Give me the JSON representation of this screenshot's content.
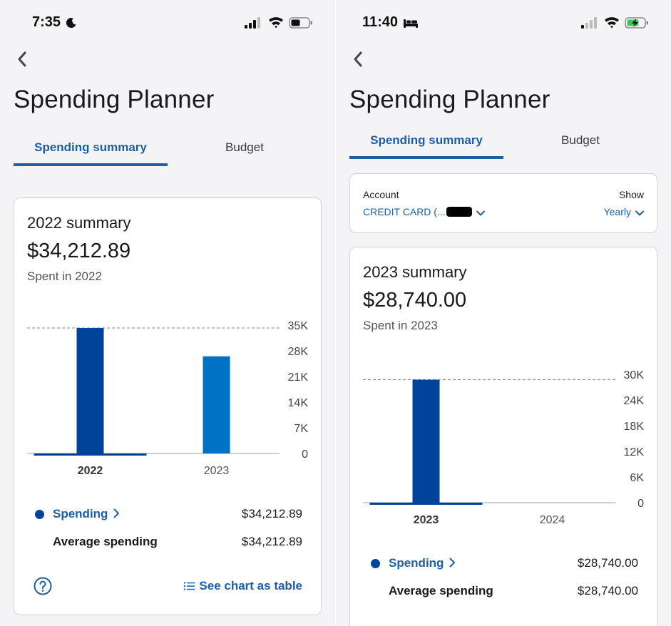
{
  "left": {
    "status": {
      "time": "7:35"
    },
    "title": "Spending Planner",
    "tabs": [
      "Spending summary",
      "Budget"
    ],
    "summary": {
      "title": "2022 summary",
      "amount": "$34,212.89",
      "subtitle": "Spent in 2022"
    },
    "chart_data": {
      "type": "bar",
      "categories": [
        "2022",
        "2023"
      ],
      "values": [
        34212.89,
        26500
      ],
      "selected_category": "2022",
      "ylim": [
        0,
        35000
      ],
      "y_ticks": [
        "35K",
        "28K",
        "21K",
        "14K",
        "7K",
        "0"
      ],
      "reference_line": 34212.89,
      "colors": {
        "selected": "#00439a",
        "default": "#0072c6"
      }
    },
    "legend": [
      {
        "label": "Spending",
        "value": "$34,212.89"
      },
      {
        "label": "Average spending",
        "value": "$34,212.89"
      }
    ],
    "footer": {
      "table_link": "See chart as table"
    }
  },
  "right": {
    "status": {
      "time": "11:40"
    },
    "title": "Spending Planner",
    "tabs": [
      "Spending summary",
      "Budget"
    ],
    "account": {
      "label": "Account",
      "value": "CREDIT CARD (...",
      "show_label": "Show",
      "show_value": "Yearly"
    },
    "summary": {
      "title": "2023 summary",
      "amount": "$28,740.00",
      "subtitle": "Spent in 2023"
    },
    "chart_data": {
      "type": "bar",
      "categories": [
        "2023",
        "2024"
      ],
      "values": [
        28740,
        0
      ],
      "selected_category": "2023",
      "ylim": [
        0,
        30000
      ],
      "y_ticks": [
        "30K",
        "24K",
        "18K",
        "12K",
        "6K",
        "0"
      ],
      "reference_line": 28740,
      "colors": {
        "selected": "#00439a",
        "default": "#0072c6"
      }
    },
    "legend": [
      {
        "label": "Spending",
        "value": "$28,740.00"
      },
      {
        "label": "Average spending",
        "value": "$28,740.00"
      }
    ]
  }
}
